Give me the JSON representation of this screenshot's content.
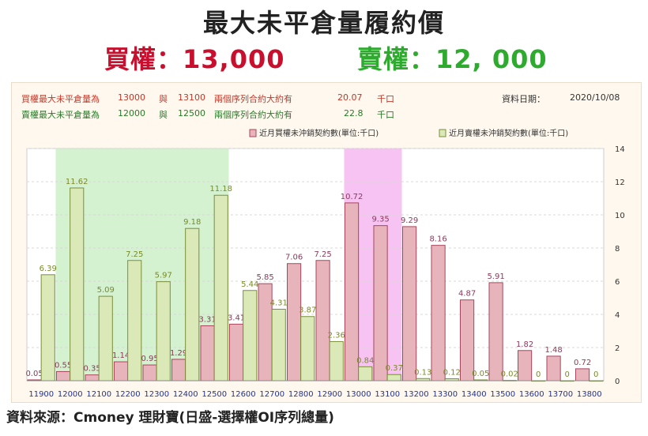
{
  "title": "最大未平倉量履約價",
  "call_summary": "買權：13,000",
  "put_summary": "賣權：12, 000",
  "info": {
    "call_row": {
      "label": "買權最大未平倉量為",
      "strike1": "13000",
      "join": "與",
      "strike2": "13100",
      "desc": "兩個序列合約大約有",
      "value": "20.07",
      "unit": "千口"
    },
    "put_row": {
      "label": "賣權最大未平倉量為",
      "strike1": "12000",
      "join": "與",
      "strike2": "12500",
      "desc": "兩個序列合約大約有",
      "value": "22.8",
      "unit": "千口"
    },
    "date_label": "資料日期：",
    "date_value": "2020/10/08"
  },
  "footer": "資料來源：Cmoney 理財寶(日盛-選擇權OI序列總量)",
  "colors": {
    "call_fill": "#e8b4bc",
    "call_stroke": "#a8455c",
    "call_label": "#8b3a5a",
    "put_fill": "#dbe8b8",
    "put_stroke": "#7a8f3a",
    "put_label": "#7a8a28",
    "put_highlight": "#cdeec8",
    "call_highlight": "#f5b8f0"
  },
  "chart_data": {
    "type": "bar",
    "categories": [
      "11900",
      "12000",
      "12100",
      "12200",
      "12300",
      "12400",
      "12500",
      "12600",
      "12700",
      "12800",
      "12900",
      "13000",
      "13100",
      "13200",
      "13300",
      "13400",
      "13500",
      "13600",
      "13700",
      "13800"
    ],
    "series": [
      {
        "name": "近月買權未沖銷契約數(單位:千口)",
        "values": [
          0.05,
          0.55,
          0.35,
          1.14,
          0.95,
          1.29,
          3.31,
          3.41,
          5.85,
          7.06,
          7.25,
          10.72,
          9.35,
          9.29,
          8.16,
          4.87,
          5.91,
          1.82,
          1.48,
          0.72
        ],
        "labels": [
          "0.05",
          "0.55",
          "0.35",
          "1.14",
          "0.95",
          "1.29",
          "3.31",
          "3.41",
          "5.85",
          "7.06",
          "7.25",
          "10.72",
          "9.35",
          "9.29",
          "8.16",
          "4.87",
          "5.91",
          "1.82",
          "1.48",
          "0.72"
        ]
      },
      {
        "name": "近月賣權未沖銷契約數(單位:千口)",
        "values": [
          6.39,
          11.62,
          5.09,
          7.25,
          5.97,
          9.18,
          11.18,
          5.44,
          4.31,
          3.87,
          2.36,
          0.84,
          0.37,
          0.13,
          0.12,
          0.05,
          0.02,
          0,
          0,
          0
        ],
        "labels": [
          "6.39",
          "11.62",
          "5.09",
          "7.25",
          "5.97",
          "9.18",
          "11.18",
          "5.44",
          "4.31",
          "3.87",
          "2.36",
          "0.84",
          "0.37",
          "0.13",
          "0.12",
          "0.05",
          "0.02",
          "0",
          "0",
          "0"
        ]
      }
    ],
    "yticks": [
      "0",
      "2",
      "4",
      "6",
      "8",
      "10",
      "12",
      "14"
    ],
    "ylim": [
      0,
      14
    ],
    "highlight_put_range": [
      "12000",
      "12500"
    ],
    "highlight_call_range": [
      "13000",
      "13100"
    ],
    "legend_position": "top-right"
  }
}
